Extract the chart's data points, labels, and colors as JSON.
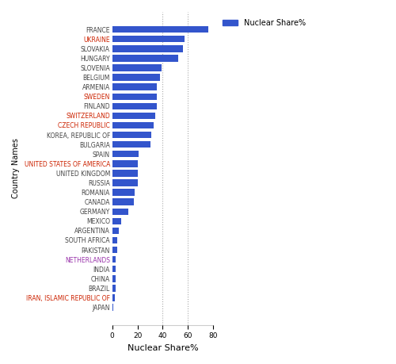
{
  "countries": [
    "FRANCE",
    "UKRAINE",
    "SLOVAKIA",
    "HUNGARY",
    "SLOVENIA",
    "BELGIUM",
    "ARMENIA",
    "SWEDEN",
    "FINLAND",
    "SWITZERLAND",
    "CZECH REPUBLIC",
    "KOREA, REPUBLIC OF",
    "BULGARIA",
    "SPAIN",
    "UNITED STATES OF AMERICA",
    "UNITED KINGDOM",
    "RUSSIA",
    "ROMANIA",
    "CANADA",
    "GERMANY",
    "MEXICO",
    "ARGENTINA",
    "SOUTH AFRICA",
    "PAKISTAN",
    "NETHERLANDS",
    "INDIA",
    "CHINA",
    "BRAZIL",
    "IRAN, ISLAMIC REPUBLIC OF",
    "JAPAN"
  ],
  "values": [
    76,
    57,
    56,
    52,
    39,
    38,
    35,
    35,
    35,
    34,
    33,
    31,
    30,
    21,
    20,
    20,
    20,
    18,
    17,
    13,
    7,
    5,
    4,
    4,
    3,
    3,
    3,
    3,
    2,
    1
  ],
  "bar_color": "#3355cc",
  "xlabel": "Nuclear Share%",
  "ylabel": "Country Names",
  "legend_label": "Nuclear Share%",
  "legend_color": "#3355cc",
  "background_color": "#ffffff",
  "xlim": [
    0,
    80
  ],
  "xticks": [
    0,
    20,
    40,
    60,
    80
  ],
  "label_colors": {
    "UKRAINE": "#cc2200",
    "CZECH REPUBLIC": "#cc2200",
    "IRAN, ISLAMIC REPUBLIC OF": "#cc2200",
    "NETHERLANDS": "#9933aa",
    "UNITED STATES OF AMERICA": "#cc2200",
    "SWEDEN": "#cc2200",
    "SWITZERLAND": "#cc2200"
  },
  "default_label_color": "#444444",
  "vline_color": "#aaaaaa",
  "vline_positions": [
    40,
    60
  ],
  "bar_height": 0.7,
  "ylabel_fontsize": 7,
  "xlabel_fontsize": 8,
  "tick_fontsize": 5.5,
  "legend_fontsize": 7
}
